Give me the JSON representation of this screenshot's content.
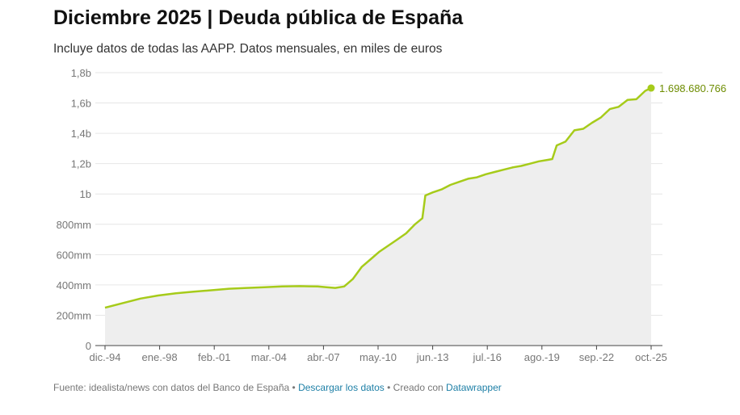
{
  "header": {
    "title": "Diciembre 2025 | Deuda pública de España",
    "subtitle": "Incluye datos de todas las AAPP. Datos mensuales, en miles de euros"
  },
  "footer": {
    "source": "Fuente: idealista/news con datos del Banco de España",
    "sep1": " • ",
    "download_label": "Descargar los datos",
    "sep2": " • Creado con ",
    "datawrapper_label": "Datawrapper"
  },
  "colors": {
    "line": "#a6cb1a",
    "area": "#eeeeee",
    "end_label": "#6d8c00",
    "grid": "#e6e6e6"
  },
  "chart_data": {
    "type": "area",
    "ylim": [
      0,
      1800000000
    ],
    "y_ticks": [
      {
        "value": 0,
        "label": "0"
      },
      {
        "value": 200000000,
        "label": "200mm"
      },
      {
        "value": 400000000,
        "label": "400mm"
      },
      {
        "value": 600000000,
        "label": "600mm"
      },
      {
        "value": 800000000,
        "label": "800mm"
      },
      {
        "value": 1000000000,
        "label": "1b"
      },
      {
        "value": 1200000000,
        "label": "1,2b"
      },
      {
        "value": 1400000000,
        "label": "1,4b"
      },
      {
        "value": 1600000000,
        "label": "1,6b"
      },
      {
        "value": 1800000000,
        "label": "1,8b"
      }
    ],
    "x_range": [
      "1994-12",
      "2025-10"
    ],
    "x_ticks": [
      {
        "date": "1994-12",
        "label": "dic.-94"
      },
      {
        "date": "1998-01",
        "label": "ene.-98"
      },
      {
        "date": "2001-02",
        "label": "feb.-01"
      },
      {
        "date": "2004-03",
        "label": "mar.-04"
      },
      {
        "date": "2007-04",
        "label": "abr.-07"
      },
      {
        "date": "2010-05",
        "label": "may.-10"
      },
      {
        "date": "2013-06",
        "label": "jun.-13"
      },
      {
        "date": "2016-07",
        "label": "jul.-16"
      },
      {
        "date": "2019-08",
        "label": "ago.-19"
      },
      {
        "date": "2022-09",
        "label": "sep.-22"
      },
      {
        "date": "2025-10",
        "label": "oct.-25"
      }
    ],
    "series": [
      {
        "points": [
          {
            "x": "1994-12",
            "y": 250000000
          },
          {
            "x": "1995-12",
            "y": 280000000
          },
          {
            "x": "1996-12",
            "y": 310000000
          },
          {
            "x": "1997-12",
            "y": 330000000
          },
          {
            "x": "1998-12",
            "y": 345000000
          },
          {
            "x": "1999-12",
            "y": 355000000
          },
          {
            "x": "2000-12",
            "y": 365000000
          },
          {
            "x": "2001-12",
            "y": 375000000
          },
          {
            "x": "2002-12",
            "y": 380000000
          },
          {
            "x": "2003-12",
            "y": 385000000
          },
          {
            "x": "2004-12",
            "y": 390000000
          },
          {
            "x": "2005-12",
            "y": 392000000
          },
          {
            "x": "2006-12",
            "y": 390000000
          },
          {
            "x": "2007-06",
            "y": 385000000
          },
          {
            "x": "2007-12",
            "y": 380000000
          },
          {
            "x": "2008-06",
            "y": 390000000
          },
          {
            "x": "2008-12",
            "y": 440000000
          },
          {
            "x": "2009-06",
            "y": 520000000
          },
          {
            "x": "2009-12",
            "y": 570000000
          },
          {
            "x": "2010-06",
            "y": 620000000
          },
          {
            "x": "2010-12",
            "y": 660000000
          },
          {
            "x": "2011-06",
            "y": 700000000
          },
          {
            "x": "2011-12",
            "y": 740000000
          },
          {
            "x": "2012-06",
            "y": 800000000
          },
          {
            "x": "2012-11",
            "y": 840000000
          },
          {
            "x": "2013-01",
            "y": 990000000
          },
          {
            "x": "2013-06",
            "y": 1010000000
          },
          {
            "x": "2013-12",
            "y": 1030000000
          },
          {
            "x": "2014-06",
            "y": 1060000000
          },
          {
            "x": "2014-12",
            "y": 1080000000
          },
          {
            "x": "2015-06",
            "y": 1100000000
          },
          {
            "x": "2015-12",
            "y": 1110000000
          },
          {
            "x": "2016-06",
            "y": 1130000000
          },
          {
            "x": "2016-12",
            "y": 1145000000
          },
          {
            "x": "2017-06",
            "y": 1160000000
          },
          {
            "x": "2017-12",
            "y": 1175000000
          },
          {
            "x": "2018-06",
            "y": 1185000000
          },
          {
            "x": "2018-12",
            "y": 1200000000
          },
          {
            "x": "2019-06",
            "y": 1215000000
          },
          {
            "x": "2019-12",
            "y": 1225000000
          },
          {
            "x": "2020-03",
            "y": 1230000000
          },
          {
            "x": "2020-06",
            "y": 1320000000
          },
          {
            "x": "2020-12",
            "y": 1345000000
          },
          {
            "x": "2021-06",
            "y": 1420000000
          },
          {
            "x": "2021-12",
            "y": 1430000000
          },
          {
            "x": "2022-06",
            "y": 1470000000
          },
          {
            "x": "2022-12",
            "y": 1505000000
          },
          {
            "x": "2023-06",
            "y": 1560000000
          },
          {
            "x": "2023-12",
            "y": 1575000000
          },
          {
            "x": "2024-06",
            "y": 1620000000
          },
          {
            "x": "2024-12",
            "y": 1625000000
          },
          {
            "x": "2025-06",
            "y": 1680000000
          },
          {
            "x": "2025-10",
            "y": 1698680766
          }
        ]
      }
    ],
    "end_value": 1698680766,
    "end_label": "1.698.680.766",
    "grid": true
  }
}
